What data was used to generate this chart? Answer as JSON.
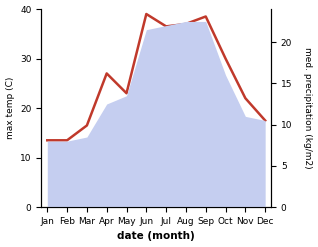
{
  "months": [
    "Jan",
    "Feb",
    "Mar",
    "Apr",
    "May",
    "Jun",
    "Jul",
    "Aug",
    "Sep",
    "Oct",
    "Nov",
    "Dec"
  ],
  "temp": [
    13.5,
    13.5,
    16.5,
    27.0,
    23.0,
    39.0,
    36.5,
    37.0,
    38.5,
    30.0,
    22.0,
    17.5
  ],
  "precip": [
    8.0,
    8.0,
    8.5,
    12.5,
    13.5,
    21.5,
    22.0,
    22.5,
    22.5,
    16.0,
    11.0,
    10.5
  ],
  "temp_color": "#c0392b",
  "precip_fill_color": "#c5cef0",
  "ylabel_left": "max temp (C)",
  "ylabel_right": "med. precipitation (kg/m2)",
  "xlabel": "date (month)",
  "ylim_left": [
    0,
    40
  ],
  "ylim_right": [
    0,
    24
  ],
  "yticks_left": [
    0,
    10,
    20,
    30,
    40
  ],
  "yticks_right": [
    0,
    5,
    10,
    15,
    20
  ],
  "bg_color": "#ffffff",
  "line_width": 1.8
}
